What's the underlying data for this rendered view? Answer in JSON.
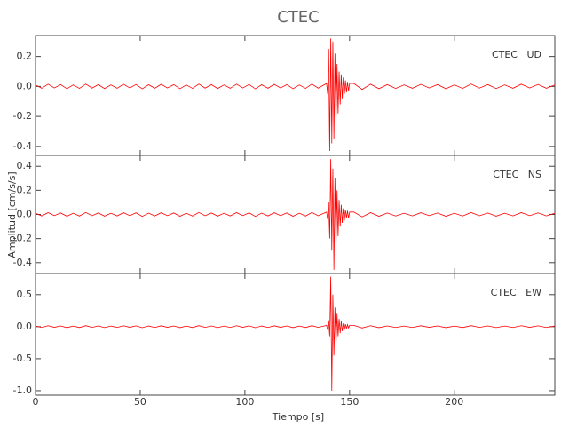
{
  "title": "CTEC",
  "y_label": "Amplitud [cm/s/s]",
  "x_label": "Tiempo [s]",
  "xlim": [
    0,
    248
  ],
  "xticks": [
    0,
    50,
    100,
    150,
    200
  ],
  "x": [
    0,
    3,
    6,
    9,
    12,
    15,
    18,
    21,
    24,
    27,
    30,
    33,
    36,
    39,
    42,
    45,
    48,
    51,
    54,
    57,
    60,
    63,
    66,
    69,
    72,
    75,
    78,
    81,
    84,
    87,
    90,
    93,
    96,
    99,
    102,
    105,
    108,
    111,
    114,
    117,
    120,
    123,
    126,
    129,
    132,
    135,
    138,
    139,
    139.5,
    140,
    140.5,
    141,
    141.5,
    142,
    142.5,
    143,
    143.5,
    144,
    144.5,
    145,
    145.5,
    146,
    146.5,
    147,
    147.5,
    148,
    148.5,
    149,
    149.5,
    150,
    152,
    156,
    160,
    164,
    168,
    172,
    176,
    180,
    184,
    188,
    192,
    196,
    200,
    204,
    208,
    212,
    216,
    220,
    224,
    228,
    232,
    236,
    240,
    244,
    248
  ],
  "chart_data": [
    {
      "type": "line",
      "label": "CTEC   UD",
      "color": "#ff0000",
      "ylim": [
        -0.46,
        0.34
      ],
      "yticks": [
        {
          "value": -0.4,
          "label": "-0.4"
        },
        {
          "value": -0.2,
          "label": "-0.2"
        },
        {
          "value": 0,
          "label": "0.0"
        },
        {
          "value": 0.2,
          "label": "0.2"
        }
      ],
      "values": [
        0.01,
        -0.012,
        0.015,
        -0.01,
        0.012,
        -0.015,
        0.01,
        -0.013,
        0.016,
        -0.011,
        0.012,
        -0.014,
        0.01,
        -0.012,
        0.015,
        -0.01,
        0.013,
        -0.016,
        0.011,
        -0.012,
        0.014,
        -0.01,
        0.012,
        -0.015,
        0.01,
        -0.013,
        0.016,
        -0.011,
        0.012,
        -0.014,
        0.01,
        -0.012,
        0.015,
        -0.01,
        0.013,
        -0.016,
        0.011,
        -0.012,
        0.014,
        -0.01,
        0.012,
        -0.015,
        0.01,
        -0.013,
        0.016,
        -0.011,
        0.012,
        0.02,
        -0.05,
        0.25,
        -0.43,
        0.32,
        -0.38,
        0.3,
        -0.35,
        0.22,
        -0.25,
        0.15,
        -0.18,
        0.1,
        -0.12,
        0.08,
        -0.08,
        0.06,
        -0.05,
        0.04,
        -0.04,
        0.03,
        -0.03,
        0.02,
        0.02,
        -0.02,
        0.015,
        -0.015,
        0.012,
        -0.013,
        0.01,
        -0.012,
        0.014,
        -0.01,
        0.012,
        -0.015,
        0.01,
        -0.013,
        0.016,
        -0.011,
        0.012,
        -0.014,
        0.01,
        -0.012,
        0.015,
        -0.01,
        0.013,
        -0.012,
        0.01
      ]
    },
    {
      "type": "line",
      "label": "CTEC   NS",
      "color": "#ff0000",
      "ylim": [
        -0.49,
        0.49
      ],
      "yticks": [
        {
          "value": -0.4,
          "label": "-0.4"
        },
        {
          "value": -0.2,
          "label": "-0.2"
        },
        {
          "value": 0,
          "label": "0.0"
        },
        {
          "value": 0.2,
          "label": "0.2"
        },
        {
          "value": 0.4,
          "label": "0.4"
        }
      ],
      "values": [
        0.01,
        -0.012,
        0.015,
        -0.01,
        0.012,
        -0.015,
        0.01,
        -0.013,
        0.016,
        -0.011,
        0.012,
        -0.014,
        0.01,
        -0.012,
        0.015,
        -0.01,
        0.013,
        -0.016,
        0.011,
        -0.012,
        0.014,
        -0.01,
        0.012,
        -0.015,
        0.01,
        -0.013,
        0.016,
        -0.011,
        0.012,
        -0.014,
        0.01,
        -0.012,
        0.015,
        -0.01,
        0.013,
        -0.016,
        0.011,
        -0.012,
        0.014,
        -0.01,
        0.012,
        -0.015,
        0.01,
        -0.013,
        0.016,
        -0.011,
        0.012,
        0.02,
        -0.04,
        0.1,
        -0.2,
        0.46,
        -0.3,
        0.38,
        -0.46,
        0.3,
        -0.28,
        0.2,
        -0.18,
        0.12,
        -0.1,
        0.08,
        -0.07,
        0.05,
        -0.05,
        0.04,
        -0.03,
        0.03,
        -0.03,
        0.02,
        0.02,
        -0.02,
        0.015,
        -0.015,
        0.012,
        -0.013,
        0.01,
        -0.012,
        0.014,
        -0.01,
        0.012,
        -0.015,
        0.01,
        -0.013,
        0.016,
        -0.011,
        0.012,
        -0.014,
        0.01,
        -0.012,
        0.015,
        -0.01,
        0.013,
        -0.012,
        0.01
      ]
    },
    {
      "type": "line",
      "label": "CTEC   EW",
      "color": "#ff0000",
      "ylim": [
        -1.07,
        0.83
      ],
      "yticks": [
        {
          "value": -1,
          "label": "-1.0"
        },
        {
          "value": -0.5,
          "label": "-0.5"
        },
        {
          "value": 0,
          "label": "0.0"
        },
        {
          "value": 0.5,
          "label": "0.5"
        }
      ],
      "values": [
        0.01,
        -0.012,
        0.015,
        -0.01,
        0.012,
        -0.015,
        0.01,
        -0.013,
        0.016,
        -0.011,
        0.012,
        -0.014,
        0.01,
        -0.012,
        0.015,
        -0.01,
        0.013,
        -0.016,
        0.011,
        -0.012,
        0.014,
        -0.01,
        0.012,
        -0.015,
        0.01,
        -0.013,
        0.016,
        -0.011,
        0.012,
        -0.014,
        0.01,
        -0.012,
        0.015,
        -0.01,
        0.013,
        -0.016,
        0.011,
        -0.012,
        0.014,
        -0.01,
        0.012,
        -0.015,
        0.01,
        -0.013,
        0.016,
        -0.011,
        0.012,
        0.02,
        -0.05,
        0.1,
        -0.15,
        0.78,
        -1.0,
        0.5,
        -0.45,
        0.3,
        -0.3,
        0.2,
        -0.15,
        0.12,
        -0.1,
        0.08,
        -0.07,
        0.05,
        -0.05,
        0.04,
        -0.03,
        0.03,
        -0.02,
        0.02,
        0.02,
        -0.02,
        0.015,
        -0.015,
        0.012,
        -0.013,
        0.01,
        -0.012,
        0.014,
        -0.01,
        0.012,
        -0.015,
        0.01,
        -0.013,
        0.016,
        -0.011,
        0.012,
        -0.014,
        0.01,
        -0.012,
        0.015,
        -0.01,
        0.013,
        -0.012,
        0.01
      ]
    }
  ]
}
